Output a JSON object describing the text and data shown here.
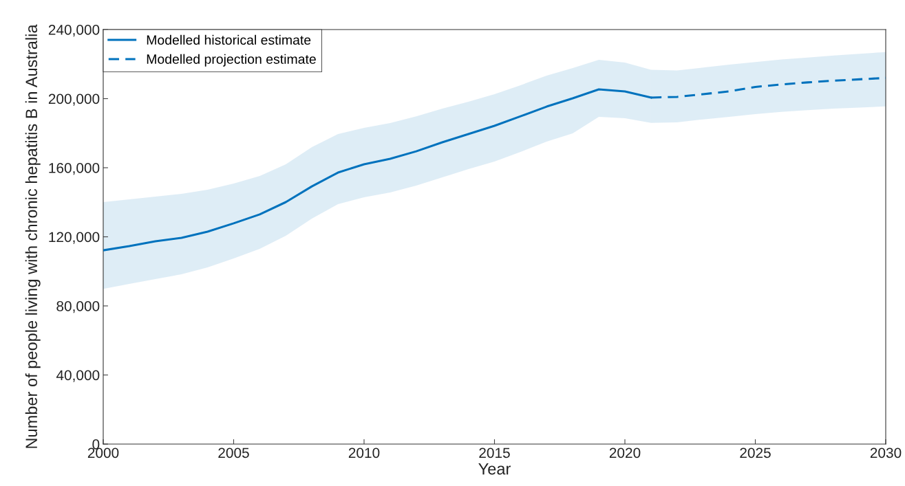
{
  "chart_data": {
    "type": "line",
    "xlabel": "Year",
    "ylabel": "Number of people living with chronic hepatitis B in Australia",
    "series": [
      {
        "name": "Modelled historical estimate",
        "color": "#0072bd",
        "line_style": "solid",
        "x": [
          2000,
          2001,
          2002,
          2003,
          2004,
          2005,
          2006,
          2007,
          2008,
          2009,
          2010,
          2011,
          2012,
          2013,
          2014,
          2015,
          2016,
          2017,
          2018,
          2019,
          2020,
          2021
        ],
        "values": [
          112200,
          114600,
          117400,
          119400,
          123000,
          127800,
          133000,
          140100,
          149200,
          157200,
          162000,
          165200,
          169500,
          174700,
          179500,
          184300,
          189800,
          195400,
          200200,
          205400,
          204200,
          200600
        ],
        "lower": [
          89900,
          92700,
          95500,
          98300,
          102300,
          107500,
          113000,
          120600,
          130500,
          138900,
          142900,
          145700,
          149700,
          154400,
          159200,
          163600,
          169200,
          175100,
          179900,
          189500,
          188700,
          186000
        ],
        "upper": [
          140100,
          141700,
          143300,
          144900,
          147300,
          150800,
          155200,
          162000,
          171900,
          179500,
          183100,
          185900,
          189800,
          194200,
          198200,
          202600,
          207800,
          213300,
          217700,
          222500,
          220900,
          216700
        ]
      },
      {
        "name": "Modelled projection estimate",
        "color": "#0072bd",
        "line_style": "dashed",
        "x": [
          2021,
          2022,
          2023,
          2024,
          2025,
          2026,
          2027,
          2028,
          2029,
          2030
        ],
        "values": [
          200600,
          201000,
          202600,
          204200,
          206800,
          208200,
          209400,
          210400,
          211200,
          212000
        ],
        "lower": [
          186000,
          186300,
          188000,
          189500,
          191000,
          192300,
          193300,
          194200,
          194800,
          195500
        ],
        "upper": [
          216700,
          216300,
          218000,
          219700,
          221200,
          222700,
          223800,
          225000,
          226000,
          227000
        ]
      }
    ],
    "xlim": [
      2000,
      2030
    ],
    "xticks": [
      2000,
      2005,
      2010,
      2015,
      2020,
      2025,
      2030
    ],
    "ylim": [
      0,
      240000
    ],
    "yticks": [
      {
        "value": 0,
        "label": "0"
      },
      {
        "value": 40000,
        "label": "40,000"
      },
      {
        "value": 80000,
        "label": "80,000"
      },
      {
        "value": 120000,
        "label": "120,000"
      },
      {
        "value": 160000,
        "label": "160,000"
      },
      {
        "value": 200000,
        "label": "200,000"
      },
      {
        "value": 240000,
        "label": "240,000"
      }
    ],
    "grid": false,
    "legend": "top left",
    "marker": "none"
  }
}
